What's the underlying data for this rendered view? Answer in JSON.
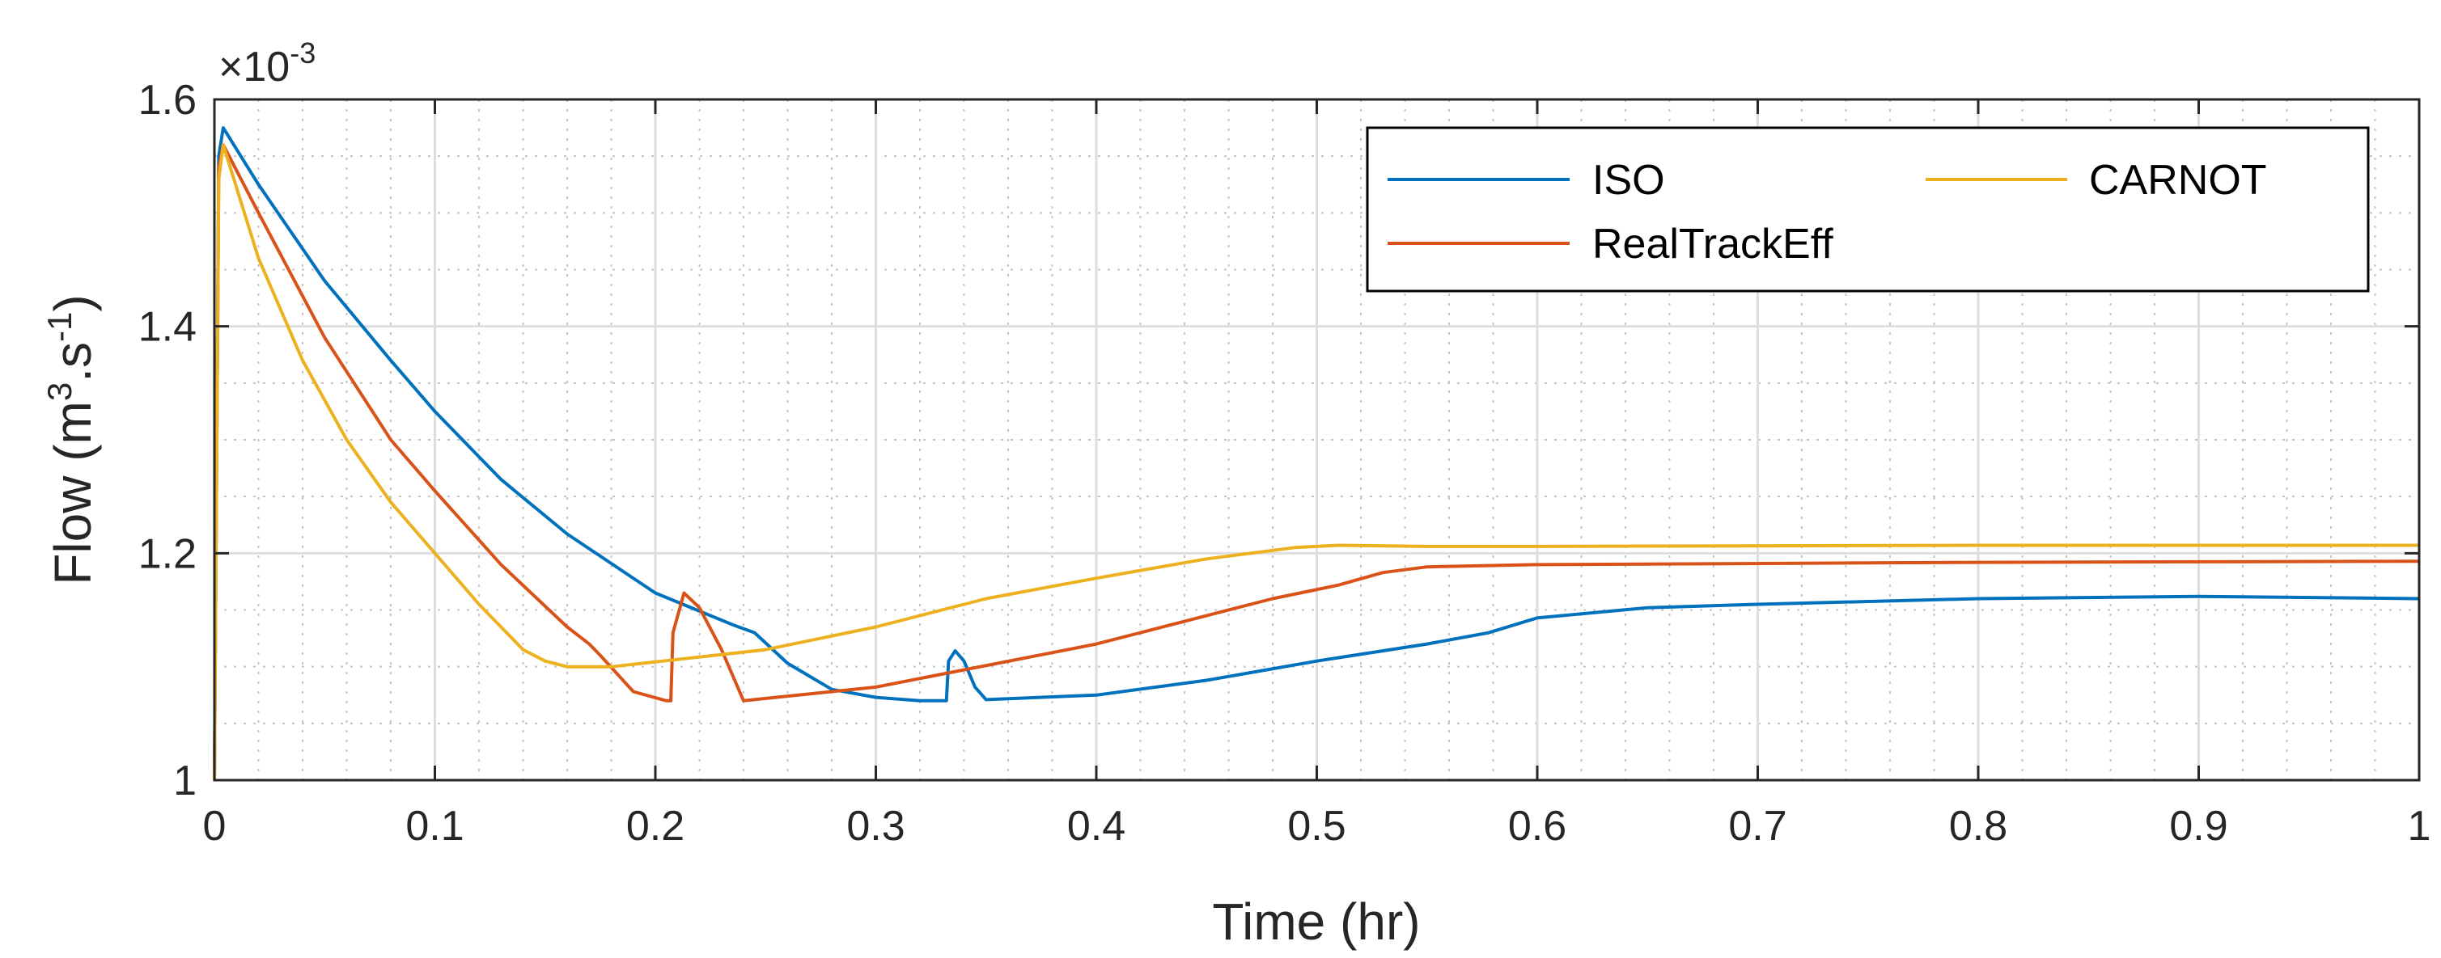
{
  "chart_data": {
    "type": "line",
    "title": "",
    "xlabel": "Time (hr)",
    "ylabel": {
      "prefix": "Flow (m",
      "sup1": "3",
      "mid": ".s",
      "sup2": "-1",
      "suffix": ")"
    },
    "y_multiplier": {
      "prefix": "×10",
      "exponent": "-3"
    },
    "xlim": [
      0,
      1
    ],
    "ylim": [
      1.0,
      1.6
    ],
    "x_ticks": [
      0,
      0.1,
      0.2,
      0.3,
      0.4,
      0.5,
      0.6,
      0.7,
      0.8,
      0.9,
      1
    ],
    "x_tick_labels": [
      "0",
      "0.1",
      "0.2",
      "0.3",
      "0.4",
      "0.5",
      "0.6",
      "0.7",
      "0.8",
      "0.9",
      "1"
    ],
    "y_ticks": [
      1.0,
      1.2,
      1.4,
      1.6
    ],
    "y_tick_labels": [
      "1",
      "1.2",
      "1.4",
      "1.6"
    ],
    "y_minor_ticks": [
      1.05,
      1.1,
      1.15,
      1.25,
      1.3,
      1.35,
      1.45,
      1.5,
      1.55
    ],
    "x_minor_ticks": [
      0.02,
      0.04,
      0.06,
      0.08,
      0.12,
      0.14,
      0.16,
      0.18,
      0.22,
      0.24,
      0.26,
      0.28,
      0.32,
      0.34,
      0.36,
      0.38,
      0.42,
      0.44,
      0.46,
      0.48,
      0.52,
      0.54,
      0.56,
      0.58,
      0.62,
      0.64,
      0.66,
      0.68,
      0.72,
      0.74,
      0.76,
      0.78,
      0.82,
      0.84,
      0.86,
      0.88,
      0.92,
      0.94,
      0.96,
      0.98
    ],
    "grid": true,
    "minor_grid": true,
    "legend_position": "top-right",
    "legend_columns": 2,
    "series": [
      {
        "name": "ISO",
        "color": "#0072BD",
        "x": [
          0,
          0.002,
          0.004,
          0.02,
          0.05,
          0.08,
          0.1,
          0.13,
          0.16,
          0.2,
          0.235,
          0.245,
          0.26,
          0.28,
          0.3,
          0.32,
          0.332,
          0.333,
          0.336,
          0.34,
          0.345,
          0.35,
          0.4,
          0.45,
          0.5,
          0.55,
          0.578,
          0.6,
          0.65,
          0.7,
          0.8,
          0.9,
          1.0
        ],
        "y": [
          1.0,
          1.55,
          1.575,
          1.525,
          1.44,
          1.37,
          1.325,
          1.265,
          1.217,
          1.165,
          1.137,
          1.13,
          1.103,
          1.08,
          1.073,
          1.07,
          1.07,
          1.105,
          1.114,
          1.105,
          1.082,
          1.071,
          1.075,
          1.088,
          1.105,
          1.12,
          1.13,
          1.143,
          1.152,
          1.155,
          1.16,
          1.162,
          1.16
        ]
      },
      {
        "name": "RealTrackEff",
        "color": "#D95319",
        "x": [
          0,
          0.002,
          0.004,
          0.02,
          0.05,
          0.08,
          0.1,
          0.13,
          0.16,
          0.17,
          0.175,
          0.19,
          0.205,
          0.207,
          0.208,
          0.213,
          0.22,
          0.23,
          0.24,
          0.3,
          0.4,
          0.48,
          0.51,
          0.53,
          0.55,
          0.6,
          0.8,
          1.0
        ],
        "y": [
          1.0,
          1.54,
          1.56,
          1.5,
          1.39,
          1.3,
          1.255,
          1.19,
          1.135,
          1.12,
          1.11,
          1.078,
          1.07,
          1.07,
          1.13,
          1.165,
          1.152,
          1.115,
          1.07,
          1.082,
          1.12,
          1.16,
          1.172,
          1.183,
          1.188,
          1.19,
          1.192,
          1.193
        ]
      },
      {
        "name": "CARNOT",
        "color": "#EDB120",
        "x": [
          0,
          0.002,
          0.004,
          0.02,
          0.04,
          0.06,
          0.08,
          0.1,
          0.12,
          0.14,
          0.15,
          0.16,
          0.18,
          0.25,
          0.3,
          0.35,
          0.4,
          0.45,
          0.49,
          0.51,
          0.55,
          0.6,
          0.8,
          1.0
        ],
        "y": [
          1.0,
          1.53,
          1.56,
          1.46,
          1.37,
          1.3,
          1.245,
          1.2,
          1.155,
          1.115,
          1.105,
          1.1,
          1.1,
          1.115,
          1.135,
          1.16,
          1.178,
          1.195,
          1.205,
          1.207,
          1.206,
          1.206,
          1.207,
          1.207
        ]
      }
    ]
  }
}
